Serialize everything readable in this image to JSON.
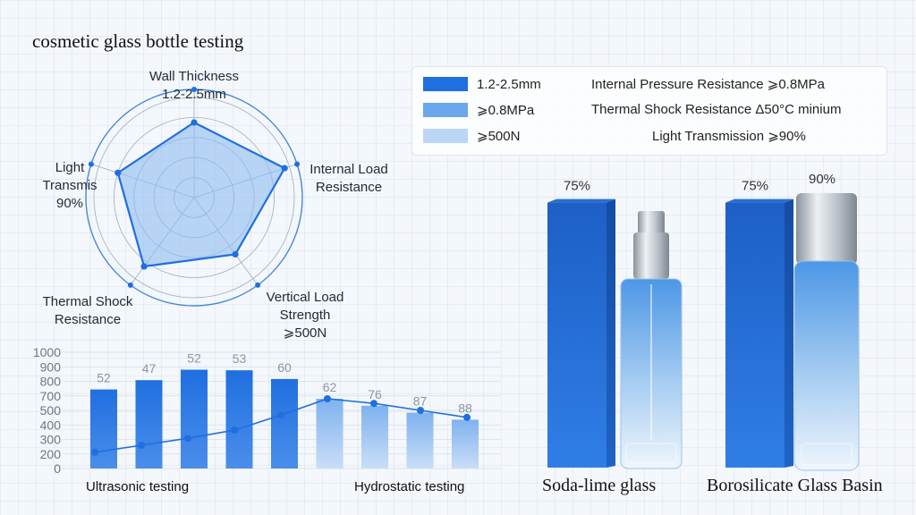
{
  "title": "cosmetic glass bottle testing",
  "legend": [
    {
      "swatch": "1.2-2.5mm",
      "color": "#1f6fe0",
      "description": "Internal Pressure Resistance ⩾0.8MPa"
    },
    {
      "swatch": "⩾0.8MPa",
      "color": "#6aa7ee",
      "description": "Thermal Shock Resistance Δ50°C minium"
    },
    {
      "swatch": "⩾500N",
      "color": "#bcd6f6",
      "description": "Light Transmission ⩾90%"
    }
  ],
  "colors": {
    "primary": "#1f6fe0",
    "radar_fill": "#8fbcf2",
    "ring": "#4a86d8"
  },
  "chart_data": [
    {
      "type": "radar",
      "axes": [
        {
          "label": [
            "Wall Thickness",
            "1.2-2.5mm"
          ],
          "value": 0.75
        },
        {
          "label": [
            "Internal Load",
            "Resistance"
          ],
          "value": 0.95
        },
        {
          "label": [
            "Vertical Load",
            "Strength",
            "⩾500N"
          ],
          "value": 0.7
        },
        {
          "label": [
            "Thermal Shock",
            "Resistance"
          ],
          "value": 0.85
        },
        {
          "label": [
            "Light",
            "Transmis",
            "90%"
          ],
          "value": 0.8
        }
      ],
      "rings": 5
    },
    {
      "type": "bar",
      "ylim": [
        0,
        1000
      ],
      "yticks": [
        0,
        200,
        300,
        400,
        500,
        700,
        800,
        900,
        1000
      ],
      "values": [
        680,
        760,
        850,
        845,
        770,
        600,
        540,
        480,
        420
      ],
      "data_labels": [
        "52",
        "47",
        "52",
        "53",
        "60",
        "62",
        "76",
        "87",
        "88"
      ],
      "line_values": [
        140,
        200,
        260,
        330,
        460,
        600,
        560,
        500,
        440
      ],
      "x_start_label": "Ultrasonic testing",
      "x_end_label": "Hydrostatic testing"
    },
    {
      "type": "bar",
      "categories": [
        "Soda-lime glass",
        "Borosilicate Glass Basin"
      ],
      "values": [
        75,
        75
      ],
      "data_labels": [
        "75%",
        "75%"
      ],
      "bottle_label": "90%"
    }
  ]
}
